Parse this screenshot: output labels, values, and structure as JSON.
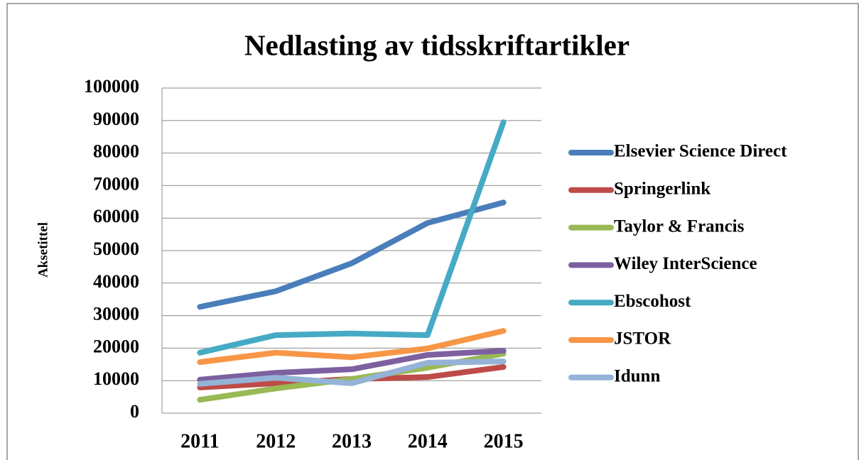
{
  "chart_data": {
    "type": "line",
    "title": "Nedlasting av tidsskriftartikler",
    "y_label": "Aksetittel",
    "categories": [
      "2011",
      "2012",
      "2013",
      "2014",
      "2015"
    ],
    "series": [
      {
        "name": "Elsevier Science Direct",
        "color": "#4a7ebb",
        "values": [
          32700,
          37500,
          46100,
          58500,
          64800
        ]
      },
      {
        "name": "Springerlink",
        "color": "#be4b48",
        "values": [
          7900,
          9200,
          10500,
          11100,
          14200
        ]
      },
      {
        "name": "Taylor & Francis",
        "color": "#98b954",
        "values": [
          4100,
          7600,
          10500,
          14000,
          18300
        ]
      },
      {
        "name": "Wiley InterScience",
        "color": "#7d60a0",
        "values": [
          10300,
          12400,
          13500,
          17900,
          19200
        ]
      },
      {
        "name": "Ebscohost",
        "color": "#46aac5",
        "values": [
          18600,
          24000,
          24500,
          24000,
          89500
        ]
      },
      {
        "name": "JSTOR",
        "color": "#f79646",
        "values": [
          15700,
          18600,
          17200,
          19900,
          25300
        ]
      },
      {
        "name": "Idunn",
        "color": "#95b3d7",
        "values": [
          9000,
          10900,
          9200,
          15500,
          15900
        ]
      }
    ],
    "ylim": [
      0,
      100000
    ],
    "yticks": [
      0,
      10000,
      20000,
      30000,
      40000,
      50000,
      60000,
      70000,
      80000,
      90000,
      100000
    ],
    "grid": true,
    "legend": "right"
  }
}
